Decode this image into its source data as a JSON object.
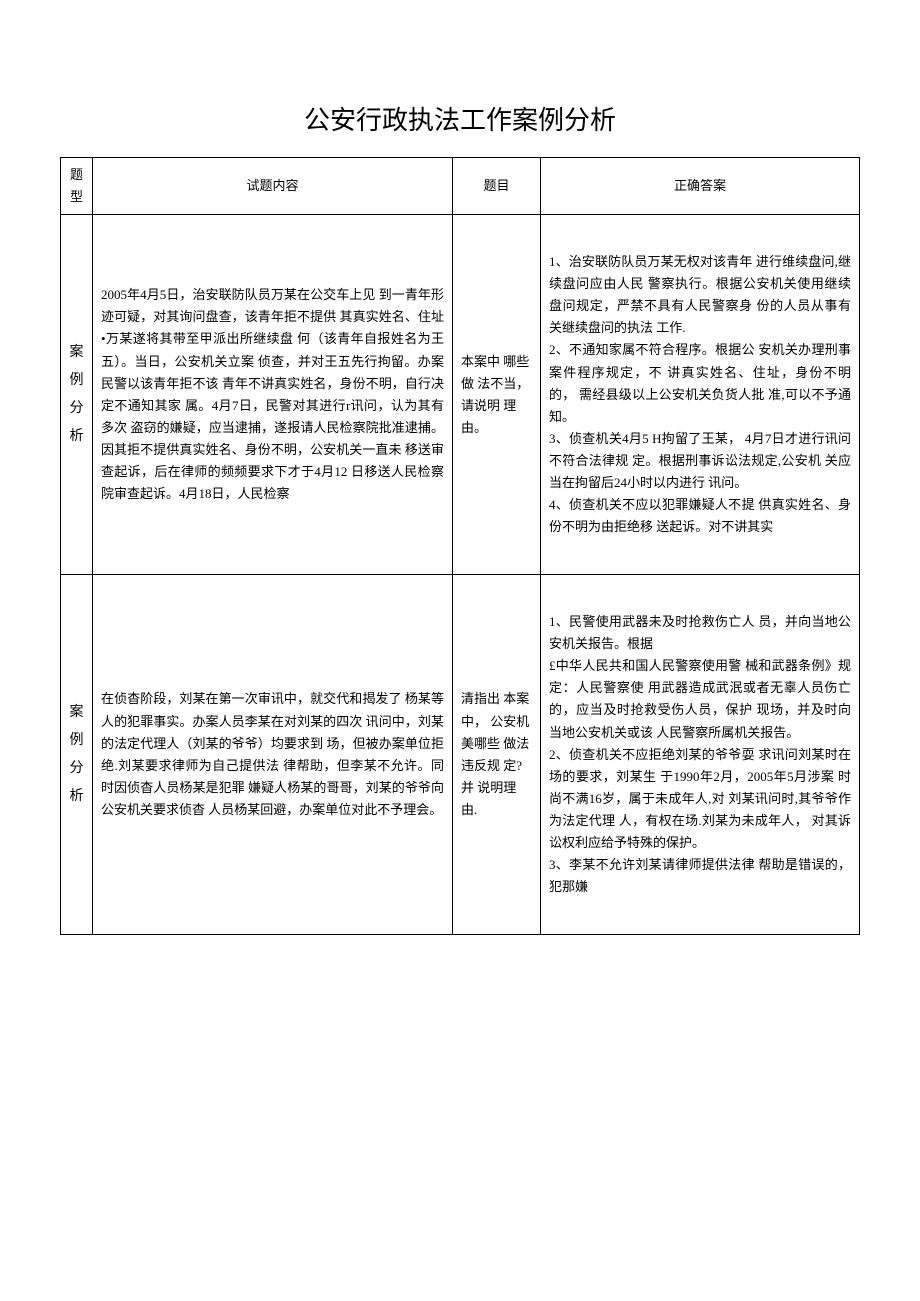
{
  "title": "公安行政执法工作案例分析",
  "headers": {
    "col1": "题 型",
    "col2": "试题内容",
    "col3": "题目",
    "col4": "正确答案"
  },
  "rows": [
    {
      "type": "案例分析",
      "content": "2005年4月5日，治安联防队员万某在公交车上见 到一青年形迹可疑，对其询问盘查，该青年拒不提供 其真实姓名、住址•万某遂将其带至甲派出所继续盘 何（该青年自报姓名为王五）。当日，公安机关立案 侦查，并对王五先行拘留。办案民警以该青年拒不该 青年不讲真实姓名，身份不明，自行决定不通知其家 属。4月7日，民警对其进行r讯问，认为其有多次 盗窃的嫌疑，应当逮捕，遂报请人民检察院批准逮捕。 因其拒不提供真实姓名、身份不明，公安机关一直未 移送审查起诉，后在律师的频频要求下才于4月12 日移送人民检察院审查起诉。4月18日，人民检察",
      "question": "本案中 哪些做 法不当， 请说明 理由。",
      "answer": "1、治安联防队员万某无权对该青年 进行维续盘问,继续盘问应由人民 警察执行。根据公安机关使用继续 盘问规定，严禁不具有人民警察身 份的人员从事有关继续盘问的执法 工作.\n2、不通知家属不符合程序。根据公 安机关办理刑事案件程序规定，不 讲真实姓名、住址，身份不明的， 需经县级以上公安机关负货人批 准,可以不予通知。\n3、侦查机关4月5 H拘留了王某， 4月7日才进行讯问不符合法律规 定。根据刑事诉讼法规定,公安机 关应当在拘留后24小时以内进行 讯问。\n4、侦查机关不应以犯罪嫌疑人不提 供真实姓名、身份不明为由拒绝移 送起诉。对不讲其实"
    },
    {
      "type": "案例分析",
      "content": "在侦杳阶段，刘某在第一次审讯中，就交代和揭发了 杨某等人的犯罪事实。办案人员李某在对刘某的四次 讯问中，刘某的法定代理人（刘某的爷爷）均要求到 场，但被办案单位拒绝.刘某要求律师为自己提供法 律帮助，但李某不允许。同时因侦杳人员杨某是犯罪 嫌疑人杨某的哥哥，刘某的爷爷向公安机关要求侦杳 人员杨某回避，办案单位对此不予理会。",
      "question": "清指出 本案中， 公安机 美哪些 做法违反规 定?并 说明理由.",
      "answer": "1、民警使用武器未及时抢救伤亡人 员，并向当地公安机关报告。根据\n£中华人民共和国人民警察使用警 械和武器条例》规定：人民警察使 用武器造成武泯或者无辜人员伤亡 的，应当及时抢救受伤人员，保护 现场，并及时向当地公安机关或该 人民警察所属机关报告。\n2、侦查机关不应拒绝刘某的爷爷耍 求讯问刘某时在场的要求，刘某生 于1990年2月，2005年5月涉案 时尚不满16岁，属于未成年人,对 刘某讯问时,其爷爷作为法定代理 人，有权在场.刘某为未成年人， 对其诉讼权利应给予特殊的保护。\n3、李某不允许刘某请律师提供法律 帮助是错误的，犯那嫌"
    }
  ]
}
